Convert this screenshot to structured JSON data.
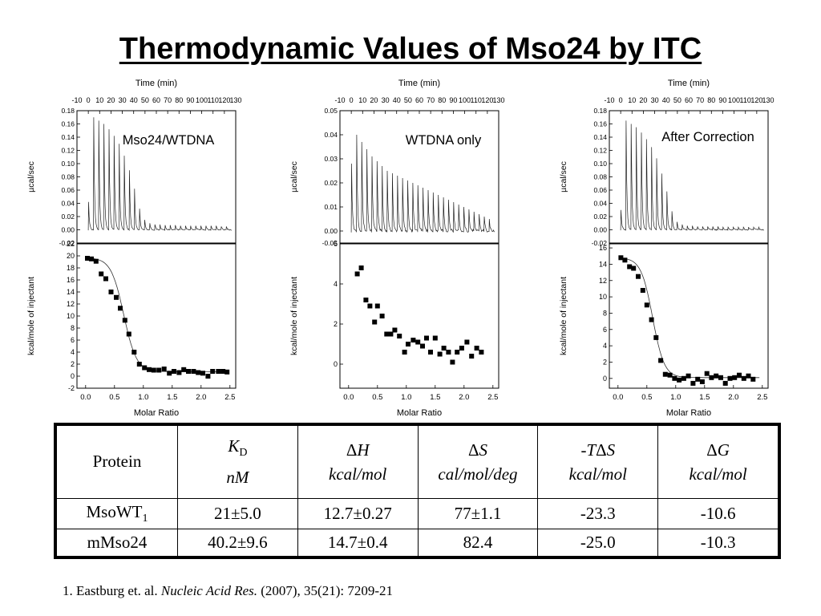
{
  "title": "Thermodynamic Values of Mso24 by ITC",
  "chart_data": [
    {
      "type": "line",
      "panel": "Mso24/WTDNA",
      "label": "Mso24/WTDNA",
      "top": {
        "xlabel": "Time (min)",
        "ylabel": "µcal/sec",
        "xlim": [
          -10,
          130
        ],
        "ylim": [
          -0.02,
          0.18
        ],
        "xticks": [
          -10,
          0,
          10,
          20,
          30,
          40,
          50,
          60,
          70,
          80,
          90,
          100,
          110,
          120,
          130
        ],
        "yticks": [
          -0.02,
          0.0,
          0.02,
          0.04,
          0.06,
          0.08,
          0.1,
          0.12,
          0.14,
          0.16,
          0.18
        ],
        "ytick_labels": [
          "-0.02",
          "0.00",
          "0.02",
          "0.04",
          "0.06",
          "0.08",
          "0.10",
          "0.12",
          "0.14",
          "0.16",
          "0.18"
        ],
        "baseline": 0.0,
        "injection_start": 0,
        "injection_interval": 4.5,
        "peaks": [
          0.042,
          0.17,
          0.165,
          0.16,
          0.152,
          0.142,
          0.13,
          0.112,
          0.09,
          0.062,
          0.032,
          0.015,
          0.01,
          0.008,
          0.008,
          0.007,
          0.007,
          0.007,
          0.006,
          0.006,
          0.006,
          0.006,
          0.006,
          0.006,
          0.006,
          0.006,
          0.005,
          0.005
        ],
        "noise": 0.0015
      },
      "bottom": {
        "xlabel": "Molar Ratio",
        "ylabel": "kcal/mole of injectant",
        "xlim": [
          -0.15,
          2.6
        ],
        "ylim": [
          -2,
          22
        ],
        "xticks": [
          0.0,
          0.5,
          1.0,
          1.5,
          2.0,
          2.5
        ],
        "xtick_labels": [
          "0.0",
          "0.5",
          "1.0",
          "1.5",
          "2.0",
          "2.5"
        ],
        "yticks": [
          -2,
          0,
          2,
          4,
          6,
          8,
          10,
          12,
          14,
          16,
          18,
          20,
          22
        ],
        "ytick_labels": [
          "-2",
          "0",
          "2",
          "4",
          "6",
          "8",
          "10",
          "12",
          "14",
          "16",
          "18",
          "20",
          "22"
        ],
        "points": [
          [
            0.03,
            19.6
          ],
          [
            0.1,
            19.5
          ],
          [
            0.18,
            19.1
          ],
          [
            0.27,
            17.0
          ],
          [
            0.35,
            16.2
          ],
          [
            0.44,
            14.0
          ],
          [
            0.53,
            13.1
          ],
          [
            0.6,
            11.3
          ],
          [
            0.68,
            9.3
          ],
          [
            0.75,
            7.0
          ],
          [
            0.84,
            4.0
          ],
          [
            0.93,
            2.0
          ],
          [
            1.02,
            1.4
          ],
          [
            1.1,
            1.1
          ],
          [
            1.18,
            1.0
          ],
          [
            1.27,
            1.0
          ],
          [
            1.36,
            1.2
          ],
          [
            1.45,
            0.5
          ],
          [
            1.53,
            0.8
          ],
          [
            1.62,
            0.6
          ],
          [
            1.7,
            1.1
          ],
          [
            1.78,
            0.8
          ],
          [
            1.87,
            0.8
          ],
          [
            1.95,
            0.6
          ],
          [
            2.03,
            0.5
          ],
          [
            2.12,
            0.0
          ],
          [
            2.2,
            0.8
          ],
          [
            2.3,
            0.8
          ],
          [
            2.38,
            0.8
          ],
          [
            2.45,
            0.7
          ]
        ],
        "fit": {
          "high": 19.7,
          "low": 0.75,
          "mid": 0.66,
          "width": 0.11
        }
      }
    },
    {
      "type": "line",
      "panel": "WTDNA only",
      "label": "WTDNA only",
      "top": {
        "xlabel": "Time (min)",
        "ylabel": "µcal/sec",
        "xlim": [
          -10,
          130
        ],
        "ylim": [
          -0.005,
          0.05
        ],
        "xticks": [
          -10,
          0,
          10,
          20,
          30,
          40,
          50,
          60,
          70,
          80,
          90,
          100,
          110,
          120,
          130
        ],
        "yticks": [
          0.0,
          0.01,
          0.02,
          0.03,
          0.04,
          0.05
        ],
        "ytick_labels": [
          "0.00",
          "0.01",
          "0.02",
          "0.03",
          "0.04",
          "0.05"
        ],
        "extra_tick_label": "-0.05",
        "baseline": 0.0,
        "injection_start": 0,
        "injection_interval": 4.5,
        "peaks": [
          0.028,
          0.04,
          0.037,
          0.034,
          0.031,
          0.029,
          0.027,
          0.025,
          0.024,
          0.023,
          0.022,
          0.021,
          0.02,
          0.019,
          0.018,
          0.017,
          0.016,
          0.015,
          0.014,
          0.013,
          0.012,
          0.011,
          0.01,
          0.009,
          0.008,
          0.007,
          0.006,
          0.005
        ],
        "noise": 0.0012
      },
      "bottom": {
        "xlabel": "Molar Ratio",
        "ylabel": "kcal/mole of injectant",
        "xlim": [
          -0.15,
          2.6
        ],
        "ylim": [
          -1.2,
          6
        ],
        "xticks": [
          0.0,
          0.5,
          1.0,
          1.5,
          2.0,
          2.5
        ],
        "xtick_labels": [
          "0.0",
          "0.5",
          "1.0",
          "1.5",
          "2.0",
          "2.5"
        ],
        "yticks": [
          0,
          2,
          4,
          6
        ],
        "ytick_labels": [
          "0",
          "2",
          "4",
          "6"
        ],
        "points": [
          [
            0.15,
            4.5
          ],
          [
            0.22,
            4.8
          ],
          [
            0.3,
            3.2
          ],
          [
            0.37,
            2.9
          ],
          [
            0.45,
            2.1
          ],
          [
            0.5,
            2.9
          ],
          [
            0.58,
            2.4
          ],
          [
            0.66,
            1.5
          ],
          [
            0.73,
            1.5
          ],
          [
            0.8,
            1.7
          ],
          [
            0.88,
            1.4
          ],
          [
            0.97,
            0.6
          ],
          [
            1.03,
            1.0
          ],
          [
            1.12,
            1.2
          ],
          [
            1.2,
            1.1
          ],
          [
            1.28,
            0.9
          ],
          [
            1.35,
            1.3
          ],
          [
            1.42,
            0.6
          ],
          [
            1.5,
            1.3
          ],
          [
            1.58,
            0.5
          ],
          [
            1.65,
            0.8
          ],
          [
            1.73,
            0.6
          ],
          [
            1.8,
            0.1
          ],
          [
            1.88,
            0.6
          ],
          [
            1.96,
            0.8
          ],
          [
            2.05,
            1.1
          ],
          [
            2.13,
            0.4
          ],
          [
            2.22,
            0.8
          ],
          [
            2.3,
            0.6
          ]
        ]
      }
    },
    {
      "type": "line",
      "panel": "After Correction",
      "label": "After Correction",
      "top": {
        "xlabel": "Time (min)",
        "ylabel": "µcal/sec",
        "xlim": [
          -10,
          130
        ],
        "ylim": [
          -0.02,
          0.18
        ],
        "xticks": [
          -10,
          0,
          10,
          20,
          30,
          40,
          50,
          60,
          70,
          80,
          90,
          100,
          110,
          120,
          130
        ],
        "yticks": [
          -0.02,
          0.0,
          0.02,
          0.04,
          0.06,
          0.08,
          0.1,
          0.12,
          0.14,
          0.16,
          0.18
        ],
        "ytick_labels": [
          "-0.02",
          "0.00",
          "0.02",
          "0.04",
          "0.06",
          "0.08",
          "0.10",
          "0.12",
          "0.14",
          "0.16",
          "0.18"
        ],
        "baseline": 0.0,
        "injection_start": 0,
        "injection_interval": 4.5,
        "peaks": [
          0.03,
          0.165,
          0.16,
          0.155,
          0.147,
          0.137,
          0.125,
          0.108,
          0.085,
          0.058,
          0.028,
          0.012,
          0.008,
          0.006,
          0.006,
          0.005,
          0.005,
          0.005,
          0.005,
          0.005,
          0.004,
          0.004,
          0.004,
          0.004,
          0.004,
          0.004,
          0.004,
          0.004
        ],
        "noise": 0.0015
      },
      "bottom": {
        "xlabel": "Molar Ratio",
        "ylabel": "kcal/mole of injectant",
        "xlim": [
          -0.15,
          2.6
        ],
        "ylim": [
          -1.2,
          16.5
        ],
        "xticks": [
          0.0,
          0.5,
          1.0,
          1.5,
          2.0,
          2.5
        ],
        "xtick_labels": [
          "0.0",
          "0.5",
          "1.0",
          "1.5",
          "2.0",
          "2.5"
        ],
        "yticks": [
          0,
          2,
          4,
          6,
          8,
          10,
          12,
          14,
          16
        ],
        "ytick_labels": [
          "0",
          "2",
          "4",
          "6",
          "8",
          "10",
          "12",
          "14",
          "16"
        ],
        "points": [
          [
            0.05,
            14.8
          ],
          [
            0.12,
            14.5
          ],
          [
            0.2,
            13.7
          ],
          [
            0.27,
            13.5
          ],
          [
            0.35,
            12.5
          ],
          [
            0.43,
            10.8
          ],
          [
            0.5,
            9.0
          ],
          [
            0.58,
            7.2
          ],
          [
            0.66,
            5.0
          ],
          [
            0.74,
            2.2
          ],
          [
            0.82,
            0.5
          ],
          [
            0.9,
            0.4
          ],
          [
            0.98,
            0.0
          ],
          [
            1.06,
            -0.2
          ],
          [
            1.14,
            0.0
          ],
          [
            1.22,
            0.3
          ],
          [
            1.3,
            -0.6
          ],
          [
            1.38,
            -0.1
          ],
          [
            1.46,
            -0.4
          ],
          [
            1.54,
            0.6
          ],
          [
            1.62,
            0.1
          ],
          [
            1.7,
            0.3
          ],
          [
            1.78,
            0.1
          ],
          [
            1.86,
            -0.6
          ],
          [
            1.94,
            0.0
          ],
          [
            2.02,
            0.1
          ],
          [
            2.1,
            0.4
          ],
          [
            2.18,
            0.0
          ],
          [
            2.26,
            0.3
          ],
          [
            2.34,
            -0.1
          ]
        ],
        "fit": {
          "high": 14.8,
          "low": 0.1,
          "mid": 0.6,
          "width": 0.1
        }
      }
    }
  ],
  "table": {
    "header": {
      "protein": "Protein",
      "kd": {
        "sym": "K",
        "sub": "D",
        "unit": "nM"
      },
      "dh": {
        "delta": "Δ",
        "sym": "H",
        "unit": "kcal/mol"
      },
      "ds": {
        "delta": "Δ",
        "sym": "S",
        "unit": "cal/mol/deg"
      },
      "tds": {
        "prefix": "-",
        "sym": "T",
        "delta": "Δ",
        "sym2": "S",
        "unit": "kcal/mol"
      },
      "dg": {
        "delta": "Δ",
        "sym": "G",
        "unit": "kcal/mol"
      }
    },
    "rows": [
      {
        "protein_base": "MsoWT",
        "protein_sub": "1",
        "kd": "21±5.0",
        "dh": "12.7±0.27",
        "ds": "77±1.1",
        "tds": "-23.3",
        "dg": "-10.6"
      },
      {
        "protein_base": "mMso24",
        "protein_sub": "",
        "kd": "40.2±9.6",
        "dh": "14.7±0.4",
        "ds": "82.4",
        "tds": "-25.0",
        "dg": "-10.3"
      }
    ]
  },
  "reference": {
    "prefix": "1. Eastburg et. al. ",
    "journal": "Nucleic Acid Res.",
    "suffix": " (2007), 35(21): 7209-21"
  }
}
